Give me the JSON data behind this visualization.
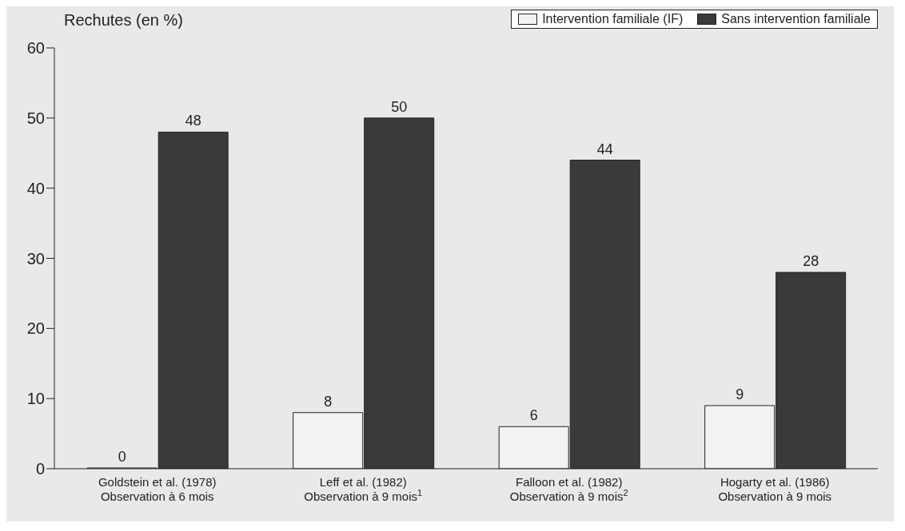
{
  "chart_data": {
    "type": "bar",
    "ylabel": "Rechutes (en %)",
    "categories": [
      "Goldstein et al. (1978)\nObservation à 6 mois",
      "Leff et al. (1982)\nObservation à 9 mois$^{1}$",
      "Falloon et al. (1982)\nObservation à 9 mois$^{2}$",
      "Hogarty et al. (1986)\nObservation à 9 mois"
    ],
    "series": [
      {
        "name": "Intervention familiale (IF)",
        "color": "#f2f2f2",
        "values": [
          0,
          8,
          6,
          9
        ]
      },
      {
        "name": "Sans intervention familiale",
        "color": "#3a3a3a",
        "values": [
          48,
          50,
          44,
          28
        ]
      }
    ],
    "ylim": [
      0,
      60
    ],
    "yticks": [
      0,
      10,
      20,
      30,
      40,
      50,
      60
    ],
    "grid": false,
    "legend": "top right",
    "data_labels": true
  }
}
